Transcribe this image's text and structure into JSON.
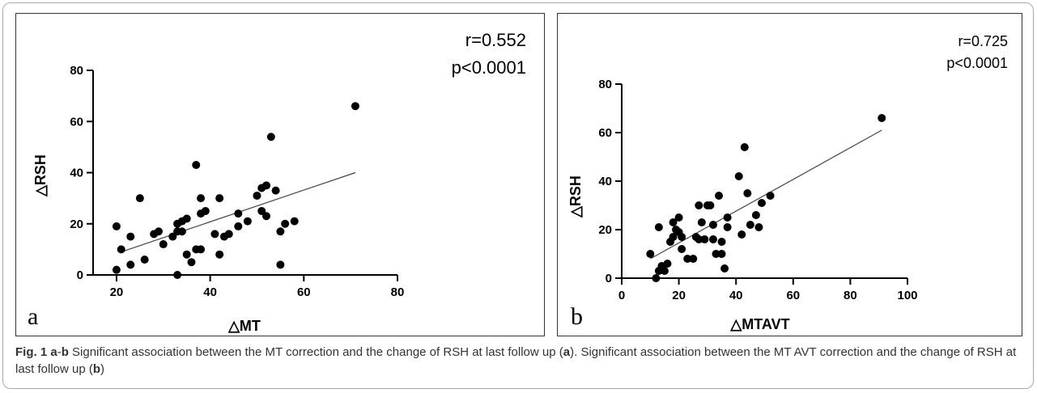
{
  "chart_data": [
    {
      "type": "scatter",
      "panel_label": "a",
      "xlabel": "△MT",
      "ylabel": "△RSH",
      "xlim": [
        15,
        80
      ],
      "ylim": [
        0,
        80
      ],
      "xticks": [
        20,
        40,
        60,
        80
      ],
      "yticks": [
        0,
        20,
        40,
        60,
        80
      ],
      "annotations": [
        "r=0.552",
        "p<0.0001"
      ],
      "fit_line": {
        "x": [
          21,
          71
        ],
        "y": [
          9,
          40
        ]
      },
      "points": [
        [
          20,
          19
        ],
        [
          20,
          2
        ],
        [
          21,
          10
        ],
        [
          23,
          15
        ],
        [
          23,
          4
        ],
        [
          25,
          30
        ],
        [
          26,
          6
        ],
        [
          28,
          16
        ],
        [
          29,
          17
        ],
        [
          30,
          12
        ],
        [
          32,
          15
        ],
        [
          33,
          17
        ],
        [
          33,
          20
        ],
        [
          33,
          0
        ],
        [
          34,
          21
        ],
        [
          34,
          17
        ],
        [
          35,
          8
        ],
        [
          35,
          22
        ],
        [
          36,
          5
        ],
        [
          37,
          43
        ],
        [
          37,
          10
        ],
        [
          38,
          10
        ],
        [
          38,
          24
        ],
        [
          38,
          30
        ],
        [
          39,
          25
        ],
        [
          41,
          16
        ],
        [
          42,
          30
        ],
        [
          42,
          8
        ],
        [
          43,
          15
        ],
        [
          44,
          16
        ],
        [
          46,
          19
        ],
        [
          46,
          24
        ],
        [
          48,
          21
        ],
        [
          50,
          31
        ],
        [
          51,
          25
        ],
        [
          51,
          34
        ],
        [
          52,
          23
        ],
        [
          52,
          35
        ],
        [
          53,
          54
        ],
        [
          54,
          33
        ],
        [
          55,
          17
        ],
        [
          55,
          4
        ],
        [
          56,
          20
        ],
        [
          58,
          21
        ],
        [
          71,
          66
        ]
      ]
    },
    {
      "type": "scatter",
      "panel_label": "b",
      "xlabel": "△MTAVT",
      "ylabel": "△RSH",
      "xlim": [
        0,
        100
      ],
      "ylim": [
        0,
        80
      ],
      "xticks": [
        0,
        20,
        40,
        60,
        80,
        100
      ],
      "yticks": [
        0,
        20,
        40,
        60,
        80
      ],
      "annotations": [
        "r=0.725",
        "p<0.0001"
      ],
      "fit_line": {
        "x": [
          10,
          91
        ],
        "y": [
          8,
          61
        ]
      },
      "points": [
        [
          10,
          10
        ],
        [
          12,
          0
        ],
        [
          13,
          3
        ],
        [
          13,
          21
        ],
        [
          14,
          5
        ],
        [
          15,
          3
        ],
        [
          16,
          6
        ],
        [
          17,
          15
        ],
        [
          18,
          17
        ],
        [
          18,
          23
        ],
        [
          19,
          20
        ],
        [
          20,
          25
        ],
        [
          20,
          19
        ],
        [
          21,
          12
        ],
        [
          21,
          17
        ],
        [
          23,
          8
        ],
        [
          25,
          8
        ],
        [
          26,
          17
        ],
        [
          27,
          30
        ],
        [
          27,
          16
        ],
        [
          28,
          23
        ],
        [
          29,
          16
        ],
        [
          30,
          30
        ],
        [
          31,
          30
        ],
        [
          32,
          22
        ],
        [
          32,
          16
        ],
        [
          33,
          10
        ],
        [
          34,
          34
        ],
        [
          35,
          10
        ],
        [
          35,
          15
        ],
        [
          36,
          4
        ],
        [
          37,
          21
        ],
        [
          37,
          25
        ],
        [
          41,
          42
        ],
        [
          42,
          18
        ],
        [
          43,
          54
        ],
        [
          44,
          35
        ],
        [
          45,
          22
        ],
        [
          47,
          26
        ],
        [
          48,
          21
        ],
        [
          49,
          31
        ],
        [
          52,
          34
        ],
        [
          91,
          66
        ]
      ]
    }
  ],
  "caption": {
    "label": "Fig. 1",
    "parts": [
      {
        "text": "  ",
        "bold": false
      },
      {
        "text": "a",
        "bold": true
      },
      {
        "text": "-",
        "bold": false
      },
      {
        "text": "b",
        "bold": true
      },
      {
        "text": " Significant association between the MT correction and the change of RSH at last follow up (",
        "bold": false
      },
      {
        "text": "a",
        "bold": true
      },
      {
        "text": "). Significant association between the MT AVT correction and the change of RSH at last follow up (",
        "bold": false
      },
      {
        "text": "b",
        "bold": true
      },
      {
        "text": ")",
        "bold": false
      }
    ]
  }
}
